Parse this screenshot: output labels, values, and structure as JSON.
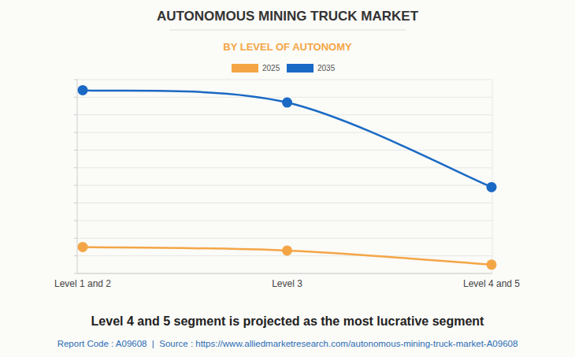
{
  "chart_data": {
    "type": "line",
    "title": "AUTONOMOUS MINING TRUCK MARKET",
    "subtitle": "BY LEVEL OF AUTONOMY",
    "categories": [
      "Level 1 and 2",
      "Level 3",
      "Level 4 and 5"
    ],
    "series": [
      {
        "name": "2025",
        "color": "#f4a646",
        "marker": "circle",
        "values": [
          1.5,
          1.3,
          0.5
        ]
      },
      {
        "name": "2035",
        "color": "#1a69c4",
        "marker": "circle",
        "values": [
          10.4,
          9.7,
          4.9
        ]
      }
    ],
    "ylim": [
      0,
      11
    ],
    "yticks": [
      0,
      1,
      2,
      3,
      4,
      5,
      6,
      7,
      8,
      9,
      10,
      11
    ],
    "grid": true,
    "tick_labels": "x",
    "legend": "top",
    "caption": "Level 4 and 5 segment is projected as the most lucrative segment",
    "source": "Report Code : A09608  |  Source : https://www.alliedmarketresearch.com/autonomous-mining-truck-market-A09608"
  }
}
